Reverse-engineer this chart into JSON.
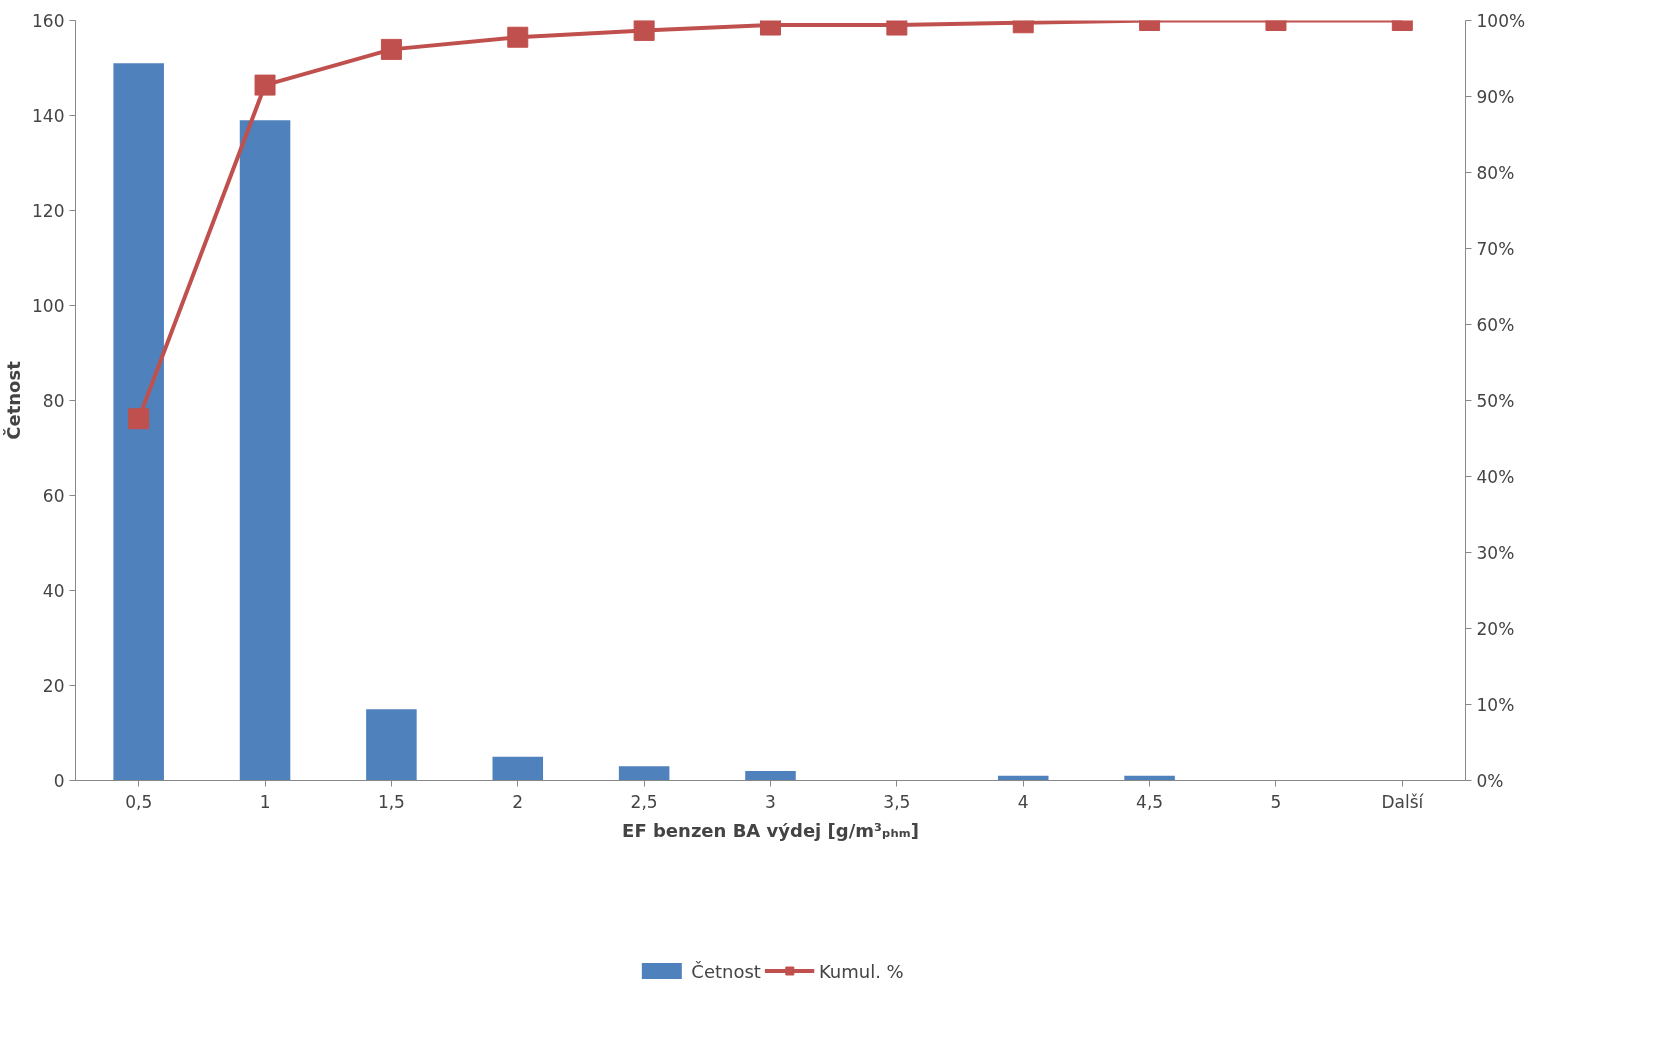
{
  "chart_data": {
    "type": "bar",
    "xlabel": "EF benzen BA výdej [g/m³ₚₕₘ]",
    "ylabel": "Četnost",
    "categories": [
      "0,5",
      "1",
      "1,5",
      "2",
      "2,5",
      "3",
      "3,5",
      "4",
      "4,5",
      "5",
      "Další"
    ],
    "series": [
      {
        "name": "Četnost",
        "color": "#4f81bd",
        "values": [
          151,
          139,
          15,
          5,
          3,
          2,
          0,
          1,
          1,
          0,
          0
        ]
      },
      {
        "name": "Kumul. %",
        "type": "line",
        "axis": "y2",
        "color": "#c0504d",
        "marker": "square",
        "values": [
          47.6,
          91.5,
          96.2,
          97.8,
          98.7,
          99.4,
          99.4,
          99.7,
          100,
          100,
          100
        ]
      }
    ],
    "ylim": [
      0,
      160
    ],
    "yticks": [
      0,
      20,
      40,
      60,
      80,
      100,
      120,
      140,
      160
    ],
    "y2lim": [
      0,
      100
    ],
    "y2ticks": [
      {
        "value": 0,
        "label": "0%"
      },
      {
        "value": 10,
        "label": "10%"
      },
      {
        "value": 20,
        "label": "20%"
      },
      {
        "value": 30,
        "label": "30%"
      },
      {
        "value": 40,
        "label": "40%"
      },
      {
        "value": 50,
        "label": "50%"
      },
      {
        "value": 60,
        "label": "60%"
      },
      {
        "value": 70,
        "label": "70%"
      },
      {
        "value": 80,
        "label": "80%"
      },
      {
        "value": 90,
        "label": "90%"
      },
      {
        "value": 100,
        "label": "100%"
      }
    ],
    "grid": false,
    "legend": "bottom"
  }
}
